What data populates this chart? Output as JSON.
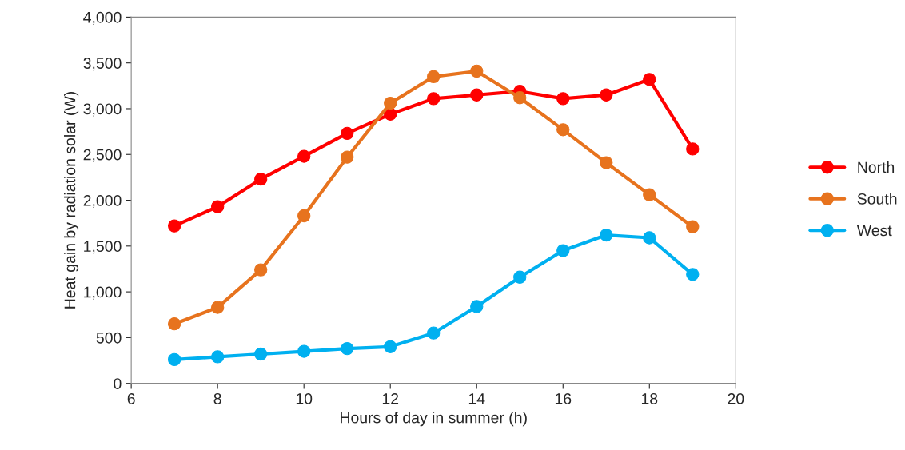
{
  "chart_data": {
    "type": "line",
    "xlabel": "Hours of day in summer (h)",
    "ylabel": "Heat gain by radiation solar (W)",
    "x": [
      7,
      8,
      9,
      10,
      11,
      12,
      13,
      14,
      15,
      16,
      17,
      18,
      19
    ],
    "series": [
      {
        "name": "North",
        "color": "#ff0000",
        "values": [
          1720,
          1930,
          2230,
          2480,
          2730,
          2940,
          3110,
          3150,
          3190,
          3110,
          3150,
          3320,
          2560
        ]
      },
      {
        "name": "South",
        "color": "#e7731e",
        "values": [
          650,
          830,
          1240,
          1830,
          2470,
          3060,
          3350,
          3410,
          3120,
          2770,
          2410,
          2060,
          1710
        ]
      },
      {
        "name": "West",
        "color": "#00b0f0",
        "values": [
          260,
          290,
          320,
          350,
          380,
          400,
          550,
          840,
          1160,
          1450,
          1620,
          1590,
          1190
        ]
      }
    ],
    "xlim": [
      6,
      20
    ],
    "xticks": [
      6,
      8,
      10,
      12,
      14,
      16,
      18,
      20
    ],
    "ylim": [
      0,
      4000
    ],
    "yticks": [
      {
        "value": 0,
        "label": "0"
      },
      {
        "value": 500,
        "label": "500"
      },
      {
        "value": 1000,
        "label": "1,000"
      },
      {
        "value": 1500,
        "label": "1,500"
      },
      {
        "value": 2000,
        "label": "2,000"
      },
      {
        "value": 2500,
        "label": "2,500"
      },
      {
        "value": 3000,
        "label": "3,000"
      },
      {
        "value": 3500,
        "label": "3,500"
      },
      {
        "value": 4000,
        "label": "4,000"
      }
    ],
    "marker": "circle",
    "line_style": "solid",
    "grid": false,
    "legend": "right"
  }
}
